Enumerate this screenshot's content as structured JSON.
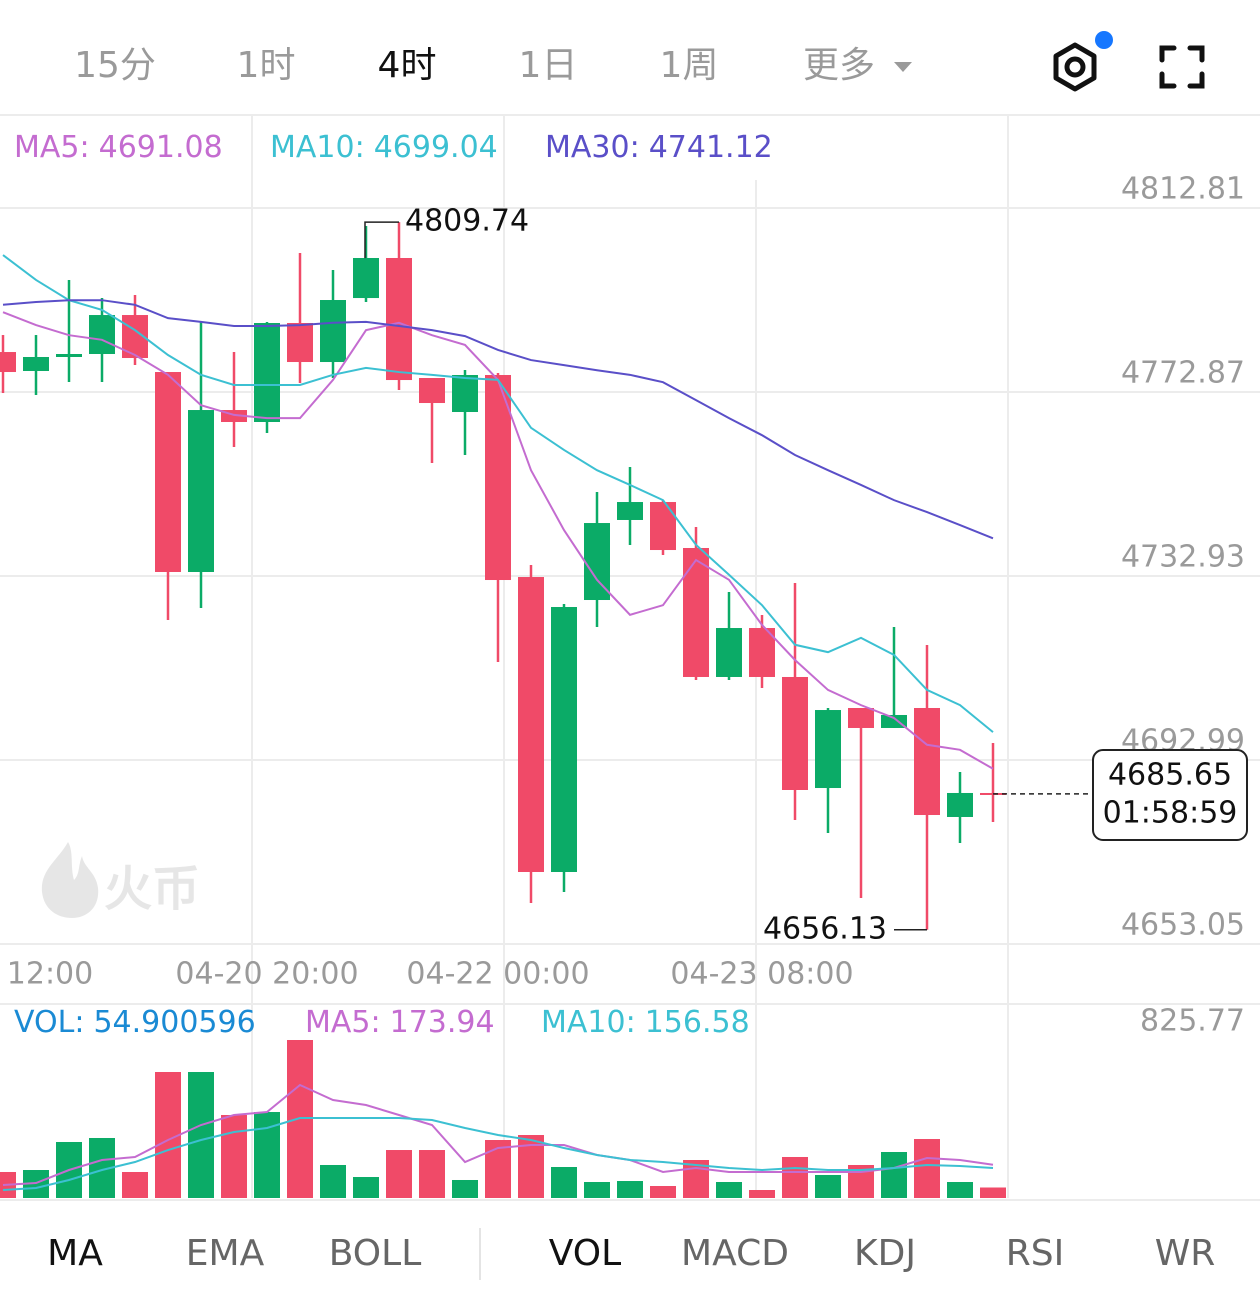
{
  "tabs": {
    "items": [
      "15分",
      "1时",
      "4时",
      "1日",
      "1周",
      "更多"
    ],
    "active": 2
  },
  "watermark": "火币",
  "chart_data": [
    {
      "type": "candlestick",
      "categories": [
        "12:00",
        null,
        null,
        null,
        null,
        null,
        null,
        null,
        "04-20 20:00",
        null,
        null,
        null,
        null,
        null,
        null,
        "04-22 00:00",
        null,
        null,
        null,
        null,
        null,
        null,
        null,
        "04-23 08:00",
        null,
        null,
        null,
        null,
        null,
        null,
        null
      ],
      "open": [
        4781.55,
        4777.43,
        4780.47,
        4781.12,
        4789.58,
        4777.21,
        4733.8,
        4768.96,
        4766.36,
        4787.85,
        4779.38,
        4793.27,
        4801.96,
        4775.91,
        4768.53,
        4776.56,
        4732.71,
        4668.68,
        4727.72,
        4745.09,
        4748.99,
        4739.01,
        4711.01,
        4721.64,
        4711.01,
        4686.91,
        4704.28,
        4699.94,
        4704.28,
        4680.62,
        4685.83
      ],
      "high": [
        4785.24,
        4785.24,
        4797.18,
        4793.27,
        4793.93,
        4777.21,
        4788.06,
        4781.55,
        4788.06,
        4803.04,
        4799.35,
        4808.9,
        4809.74,
        4775.91,
        4777.65,
        4776.99,
        4735.32,
        4726.85,
        4751.16,
        4756.59,
        4749.43,
        4743.57,
        4729.46,
        4724.46,
        4731.41,
        4704.28,
        4704.28,
        4721.86,
        4717.95,
        4690.39,
        4696.68
      ],
      "low": [
        4772.65,
        4772.22,
        4775.04,
        4775.04,
        4778.73,
        4723.38,
        4725.98,
        4760.93,
        4763.97,
        4774.82,
        4775.91,
        4792.41,
        4773.3,
        4757.46,
        4759.19,
        4714.26,
        4661.95,
        4664.34,
        4721.86,
        4739.66,
        4737.49,
        4710.36,
        4710.36,
        4708.62,
        4679.97,
        4677.14,
        4663.04,
        4699.94,
        4656.13,
        4674.97,
        4679.53
      ],
      "close": [
        4777.21,
        4780.47,
        4781.12,
        4789.58,
        4780.25,
        4733.8,
        4768.96,
        4766.36,
        4787.85,
        4779.38,
        4792.84,
        4801.96,
        4775.47,
        4770.48,
        4776.56,
        4732.06,
        4668.68,
        4726.2,
        4744.43,
        4748.99,
        4738.57,
        4711.01,
        4721.64,
        4711.01,
        4686.48,
        4703.84,
        4699.94,
        4702.76,
        4681.05,
        4685.83,
        4685.65
      ],
      "up_color": "#0bab67",
      "down_color": "#f04a68",
      "series": [
        {
          "name": "MA5:",
          "color": "#c46cd0",
          "values": [
            4790.2,
            4787.4,
            4785.2,
            4784.2,
            4780.9,
            4776.6,
            4770.0,
            4767.9,
            4767.2,
            4767.2,
            4775.5,
            4786.3,
            4787.9,
            4785.2,
            4783.1,
            4775.5,
            4755.9,
            4742.9,
            4732.1,
            4724.5,
            4726.6,
            4736.4,
            4732.1,
            4722.3,
            4714.7,
            4708.2,
            4704.9,
            4702.1,
            4696.3,
            4695.2,
            4691.08
          ]
        },
        {
          "name": "MA10:",
          "color": "#3cc0d2",
          "values": [
            4802.6,
            4797.2,
            4792.8,
            4790.7,
            4786.3,
            4780.9,
            4776.6,
            4774.4,
            4774.4,
            4774.4,
            4776.6,
            4778.1,
            4777.2,
            4776.6,
            4775.9,
            4775.5,
            4765.1,
            4760.3,
            4755.9,
            4752.7,
            4749.4,
            4739.7,
            4733.2,
            4726.6,
            4718.0,
            4716.4,
            4719.5,
            4715.8,
            4708.2,
            4704.9,
            4699.04
          ]
        },
        {
          "name": "MA30:",
          "color": "#5a4fc8",
          "values": [
            4791.8,
            4792.4,
            4792.8,
            4792.8,
            4791.8,
            4788.9,
            4788.1,
            4787.2,
            4787.2,
            4787.4,
            4787.9,
            4788.1,
            4787.2,
            4786.3,
            4785.0,
            4782.0,
            4779.8,
            4778.7,
            4777.6,
            4776.6,
            4775.0,
            4771.1,
            4767.2,
            4763.5,
            4759.2,
            4755.9,
            4752.7,
            4749.4,
            4746.8,
            4744.0,
            4741.12
          ]
        }
      ],
      "ylim": [
        4653.05,
        4833.0
      ],
      "yticks": [
        4812.81,
        4772.87,
        4732.93,
        4692.99,
        4653.05
      ],
      "grid": true,
      "last_price": 4685.65,
      "countdown": "01:58:59"
    },
    {
      "type": "bar",
      "series": [
        {
          "name": "VOL:",
          "color": "#1a8ad4",
          "values": [
            135.9,
            146.3,
            292.7,
            313.6,
            135.9,
            658.5,
            658.5,
            433.8,
            449.4,
            825.77,
            172.5,
            109.7,
            250.8,
            250.8,
            94.1,
            303.1,
            329.2,
            162.0,
            83.6,
            88.8,
            62.7,
            198.6,
            83.6,
            41.8,
            214.3,
            120.2,
            172.5,
            240.4,
            308.3,
            83.6,
            54.900596
          ]
        },
        {
          "name": "MA5:",
          "color": "#c46cd0",
          "values": [
            67.9,
            78.4,
            146.3,
            198.6,
            214.3,
            303.1,
            381.5,
            433.8,
            449.4,
            590.5,
            512.1,
            486.0,
            433.8,
            381.5,
            188.1,
            261.3,
            277.0,
            277.0,
            224.7,
            198.6,
            135.9,
            156.8,
            135.9,
            135.9,
            135.9,
            135.9,
            135.9,
            156.8,
            209.0,
            198.6,
            173.94
          ]
        },
        {
          "name": "MA10:",
          "color": "#3cc0d2",
          "values": [
            41.8,
            52.3,
            94.1,
            146.3,
            188.1,
            250.8,
            303.1,
            344.9,
            365.8,
            418.1,
            418.1,
            418.1,
            418.1,
            407.6,
            365.8,
            329.2,
            303.1,
            261.3,
            224.7,
            198.6,
            188.1,
            172.5,
            156.8,
            146.3,
            156.8,
            146.3,
            146.3,
            156.8,
            172.5,
            167.2,
            156.58
          ]
        }
      ],
      "ylim": [
        0,
        1008.7
      ],
      "yticks": [
        825.77
      ]
    }
  ],
  "indicator_tabs": {
    "main": [
      "MA",
      "EMA",
      "BOLL"
    ],
    "sub": [
      "VOL",
      "MACD",
      "KDJ",
      "RSI",
      "WR"
    ],
    "active_main": 0,
    "active_sub": 0
  }
}
